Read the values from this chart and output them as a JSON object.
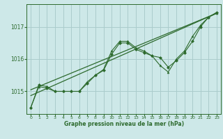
{
  "background_color": "#cde8e8",
  "grid_color": "#aacccc",
  "line_color": "#2d6a2d",
  "marker_color": "#2d6a2d",
  "xlabel": "Graphe pression niveau de la mer (hPa)",
  "ylim": [
    1014.3,
    1017.7
  ],
  "xlim": [
    -0.5,
    23.5
  ],
  "yticks": [
    1015,
    1016,
    1017
  ],
  "xticks": [
    0,
    1,
    2,
    3,
    4,
    5,
    6,
    7,
    8,
    9,
    10,
    11,
    12,
    13,
    14,
    15,
    16,
    17,
    18,
    19,
    20,
    21,
    22,
    23
  ],
  "series1_x": [
    0,
    1,
    2,
    3,
    4,
    5,
    6,
    7,
    8,
    9,
    10,
    11,
    12,
    13,
    14,
    15,
    16,
    17,
    18,
    19,
    20,
    21,
    22,
    23
  ],
  "series1_y": [
    1014.5,
    1015.2,
    1015.15,
    1015.0,
    1015.0,
    1015.0,
    1015.0,
    1015.25,
    1015.5,
    1015.65,
    1016.15,
    1016.5,
    1016.5,
    1016.3,
    1016.2,
    1016.1,
    1016.05,
    1015.75,
    1015.95,
    1016.2,
    1016.55,
    1017.0,
    1017.3,
    1017.45
  ],
  "series2_x": [
    0,
    1,
    2,
    3,
    4,
    5,
    6,
    7,
    8,
    9,
    10,
    11,
    12,
    13,
    14,
    15,
    16,
    17,
    18,
    19,
    20,
    21,
    22,
    23
  ],
  "series2_y": [
    1014.5,
    1015.15,
    1015.1,
    1015.0,
    1015.0,
    1015.0,
    1015.0,
    1015.3,
    1015.5,
    1015.68,
    1016.25,
    1016.55,
    1016.55,
    1016.35,
    1016.25,
    1016.1,
    1015.8,
    1015.6,
    1016.0,
    1016.25,
    1016.7,
    1017.05,
    1017.3,
    1017.42
  ],
  "trend1_x": [
    0,
    23
  ],
  "trend1_y": [
    1014.87,
    1017.42
  ],
  "trend2_x": [
    0,
    23
  ],
  "trend2_y": [
    1015.05,
    1017.42
  ]
}
